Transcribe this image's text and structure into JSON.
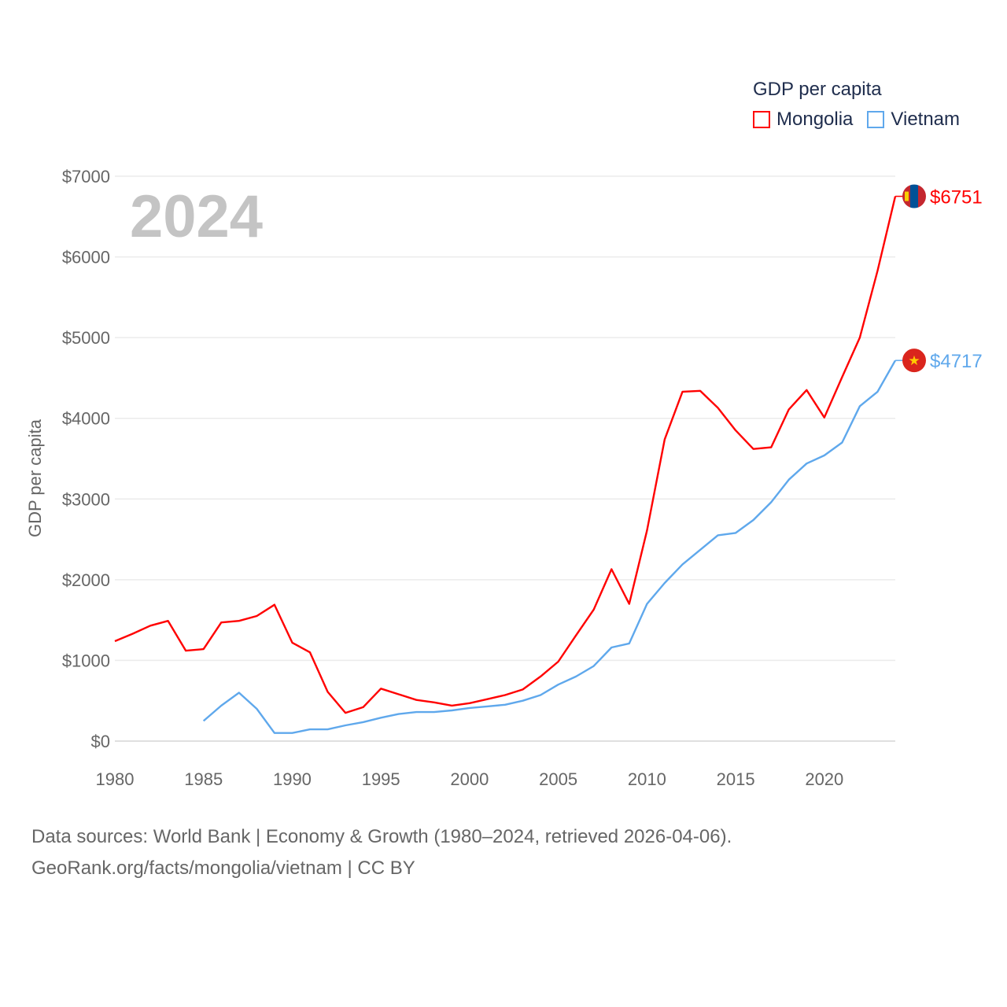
{
  "chart_data": {
    "type": "line",
    "title": "GDP per capita",
    "watermark_year": "2024",
    "xlabel": "",
    "ylabel": "GDP per capita",
    "xlim": [
      1980,
      2024
    ],
    "ylim": [
      0,
      7000
    ],
    "xticks": [
      "1980",
      "1985",
      "1990",
      "1995",
      "2000",
      "2005",
      "2010",
      "2015",
      "2020"
    ],
    "yticks": [
      "$0",
      "$1000",
      "$2000",
      "$3000",
      "$4000",
      "$5000",
      "$6000",
      "$7000"
    ],
    "grid": true,
    "legend_position": "top-right",
    "series": [
      {
        "name": "Mongolia",
        "color": "#ff0000",
        "end_label": "$6751",
        "flag": "mongolia-flag",
        "x": [
          1980,
          1981,
          1982,
          1983,
          1984,
          1985,
          1986,
          1987,
          1988,
          1989,
          1990,
          1991,
          1992,
          1993,
          1994,
          1995,
          1996,
          1997,
          1998,
          1999,
          2000,
          2001,
          2002,
          2003,
          2004,
          2005,
          2006,
          2007,
          2008,
          2009,
          2010,
          2011,
          2012,
          2013,
          2014,
          2015,
          2016,
          2017,
          2018,
          2019,
          2020,
          2021,
          2022,
          2023,
          2024
        ],
        "values": [
          1238,
          1330,
          1430,
          1490,
          1120,
          1140,
          1470,
          1490,
          1550,
          1690,
          1220,
          1100,
          610,
          350,
          420,
          650,
          580,
          510,
          480,
          440,
          470,
          520,
          570,
          640,
          800,
          985,
          1310,
          1630,
          2130,
          1700,
          2610,
          3740,
          4330,
          4340,
          4130,
          3850,
          3620,
          3640,
          4110,
          4350,
          4010,
          4510,
          5000,
          5830,
          6751
        ]
      },
      {
        "name": "Vietnam",
        "color": "#5fa8ec",
        "end_label": "$4717",
        "flag": "vietnam-flag",
        "x": [
          1985,
          1986,
          1987,
          1988,
          1989,
          1990,
          1991,
          1992,
          1993,
          1994,
          1995,
          1996,
          1997,
          1998,
          1999,
          2000,
          2001,
          2002,
          2003,
          2004,
          2005,
          2006,
          2007,
          2008,
          2009,
          2010,
          2011,
          2012,
          2013,
          2014,
          2015,
          2016,
          2017,
          2018,
          2019,
          2020,
          2021,
          2022,
          2023,
          2024
        ],
        "values": [
          250,
          440,
          600,
          400,
          100,
          100,
          145,
          145,
          195,
          235,
          290,
          335,
          360,
          360,
          380,
          410,
          430,
          450,
          500,
          570,
          700,
          800,
          930,
          1160,
          1210,
          1700,
          1960,
          2190,
          2370,
          2550,
          2580,
          2740,
          2960,
          3240,
          3440,
          3540,
          3700,
          4150,
          4330,
          4717
        ]
      }
    ]
  },
  "footer": {
    "line1": "Data sources: World Bank | Economy & Growth (1980–2024, retrieved 2026-04-06).",
    "line2": "GeoRank.org/facts/mongolia/vietnam | CC BY"
  }
}
